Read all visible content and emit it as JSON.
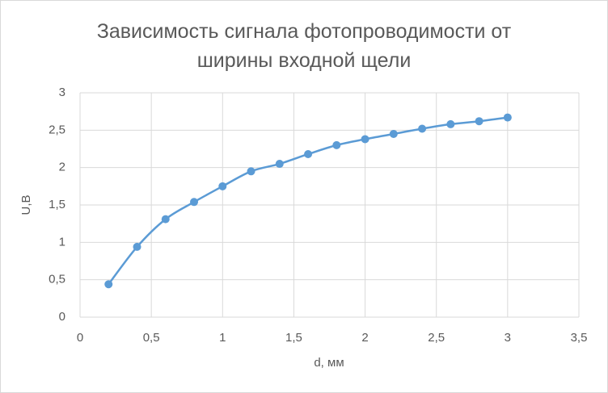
{
  "chart_data": {
    "type": "scatter-smooth",
    "title": "Зависимость сигнала фотопроводимости  от ширины входной щели",
    "x_label": "d, мм",
    "y_label": "U,В",
    "series": [
      {
        "color": "#5b9bd5",
        "x": [
          0.2,
          0.4,
          0.6,
          0.8,
          1.0,
          1.2,
          1.4,
          1.6,
          1.8,
          2.0,
          2.2,
          2.4,
          2.6,
          2.8,
          3.0
        ],
        "values": [
          0.44,
          0.94,
          1.31,
          1.54,
          1.75,
          1.95,
          2.05,
          2.18,
          2.3,
          2.38,
          2.45,
          2.52,
          2.58,
          2.62,
          2.67
        ]
      }
    ],
    "xlim": [
      0,
      3.5
    ],
    "xticks": [
      0,
      {
        "value": 0.5,
        "label": "0,5"
      },
      1,
      {
        "value": 1.5,
        "label": "1,5"
      },
      2,
      {
        "value": 2.5,
        "label": "2,5"
      },
      3,
      {
        "value": 3.5,
        "label": "3,5"
      }
    ],
    "ylim": [
      0,
      3
    ],
    "yticks": [
      0,
      {
        "value": 0.5,
        "label": "0,5"
      },
      1,
      {
        "value": 1.5,
        "label": "1,5"
      },
      2,
      {
        "value": 2.5,
        "label": "2,5"
      },
      3
    ],
    "grid": true
  }
}
